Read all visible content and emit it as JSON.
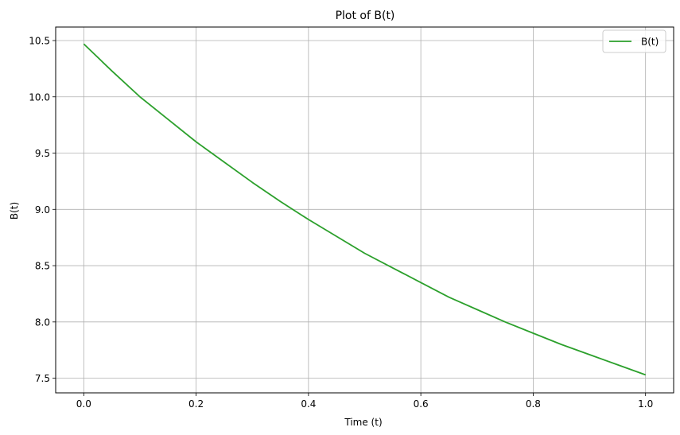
{
  "chart_data": {
    "type": "line",
    "title": "Plot of B(t)",
    "xlabel": "Time (t)",
    "ylabel": "B(t)",
    "xlim": [
      -0.05,
      1.05
    ],
    "ylim": [
      7.37,
      10.62
    ],
    "xticks": [
      0.0,
      0.2,
      0.4,
      0.6,
      0.8,
      1.0
    ],
    "xtick_labels": [
      "0.0",
      "0.2",
      "0.4",
      "0.6",
      "0.8",
      "1.0"
    ],
    "yticks": [
      7.5,
      8.0,
      8.5,
      9.0,
      9.5,
      10.0,
      10.5
    ],
    "ytick_labels": [
      "7.5",
      "8.0",
      "8.5",
      "9.0",
      "9.5",
      "10.0",
      "10.5"
    ],
    "grid": true,
    "legend": {
      "position": "top-right"
    },
    "series": [
      {
        "name": "B(t)",
        "color": "#2ca02c",
        "x": [
          0.0,
          0.05,
          0.1,
          0.15,
          0.2,
          0.25,
          0.3,
          0.35,
          0.4,
          0.45,
          0.5,
          0.55,
          0.6,
          0.65,
          0.7,
          0.75,
          0.8,
          0.85,
          0.9,
          0.95,
          1.0
        ],
        "y": [
          10.47,
          10.23,
          10.0,
          9.8,
          9.6,
          9.42,
          9.24,
          9.07,
          8.91,
          8.76,
          8.61,
          8.48,
          8.35,
          8.22,
          8.11,
          8.0,
          7.9,
          7.8,
          7.71,
          7.62,
          7.53
        ]
      }
    ]
  }
}
